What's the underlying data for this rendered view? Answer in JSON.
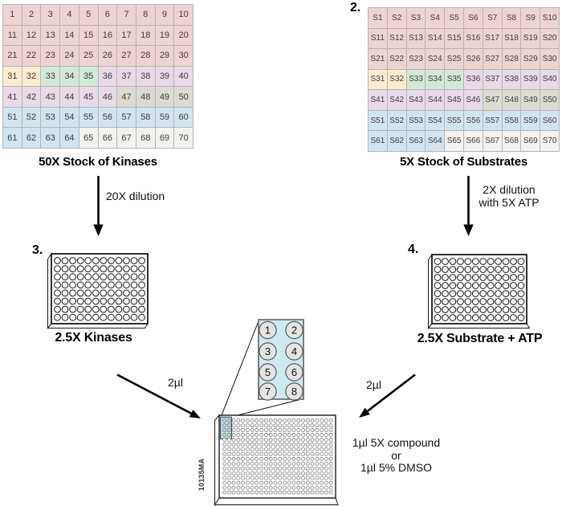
{
  "steps": {
    "step2": "2.",
    "step3": "3.",
    "step4": "4."
  },
  "kinase_grid": {
    "title": "50X Stock of Kinases",
    "labels": [
      "1",
      "2",
      "3",
      "4",
      "5",
      "6",
      "7",
      "8",
      "9",
      "10",
      "11",
      "12",
      "13",
      "14",
      "15",
      "16",
      "17",
      "18",
      "19",
      "20",
      "21",
      "22",
      "23",
      "24",
      "25",
      "26",
      "27",
      "28",
      "29",
      "30",
      "31",
      "32",
      "33",
      "34",
      "35",
      "36",
      "37",
      "38",
      "39",
      "40",
      "41",
      "42",
      "43",
      "44",
      "45",
      "46",
      "47",
      "48",
      "49",
      "50",
      "51",
      "52",
      "53",
      "54",
      "55",
      "56",
      "57",
      "58",
      "59",
      "60",
      "61",
      "62",
      "63",
      "64",
      "65",
      "66",
      "67",
      "68",
      "69",
      "70"
    ]
  },
  "substrate_grid": {
    "title": "5X Stock of Substrates",
    "labels": [
      "S1",
      "S2",
      "S3",
      "S4",
      "S5",
      "S6",
      "S7",
      "S8",
      "S9",
      "S10",
      "S11",
      "S12",
      "S13",
      "S14",
      "S15",
      "S16",
      "S17",
      "S18",
      "S19",
      "S20",
      "S21",
      "S22",
      "S23",
      "S24",
      "S25",
      "S26",
      "S27",
      "S28",
      "S29",
      "S30",
      "S31",
      "S32",
      "S33",
      "S34",
      "S35",
      "S36",
      "S37",
      "S38",
      "S39",
      "S40",
      "S41",
      "S42",
      "S43",
      "S44",
      "S45",
      "S46",
      "S47",
      "S48",
      "S49",
      "S50",
      "S51",
      "S52",
      "S53",
      "S54",
      "S55",
      "S56",
      "S57",
      "S58",
      "S59",
      "S60",
      "S61",
      "S62",
      "S63",
      "S64",
      "S65",
      "S66",
      "S67",
      "S68",
      "S69",
      "S70"
    ]
  },
  "color_ranges": [
    {
      "from": 1,
      "to": 30,
      "color": "#efd2d2"
    },
    {
      "from": 31,
      "to": 32,
      "color": "#fbecd1"
    },
    {
      "from": 33,
      "to": 35,
      "color": "#d2e9d8"
    },
    {
      "from": 36,
      "to": 46,
      "color": "#e9d9e9"
    },
    {
      "from": 47,
      "to": 50,
      "color": "#dcdbd2"
    },
    {
      "from": 51,
      "to": 64,
      "color": "#d2e4f0"
    },
    {
      "from": 65,
      "to": 70,
      "color": "#f2f2f0"
    }
  ],
  "arrows": {
    "kinase_dilution": "20X dilution",
    "substrate_dilution_line1": "2X dilution",
    "substrate_dilution_line2": "with 5X ATP",
    "kinase_volume": "2µl",
    "substrate_volume": "2µl"
  },
  "plates": {
    "kinase": {
      "label": "2.5X Kinases",
      "cols": 12,
      "rows": 8
    },
    "substrate": {
      "label": "2.5X Substrate + ATP",
      "cols": 12,
      "rows": 8
    },
    "assay": {
      "cols": 24,
      "rows": 16,
      "figure_number": "10135MA"
    }
  },
  "inset": {
    "well_numbers": [
      "1",
      "2",
      "3",
      "4",
      "5",
      "6",
      "7",
      "8"
    ]
  },
  "compound_text": {
    "line1": "1µl 5X compound",
    "line2": "or",
    "line3": "1µl 5% DMSO"
  },
  "colors": {
    "highlight_fill": "#bcdde7",
    "inset_bg": "#cdeaf0",
    "inset_well": "#e4e4e4",
    "well_stroke_96": "#1a1a1a",
    "well_stroke_384": "#7d7d7d"
  }
}
